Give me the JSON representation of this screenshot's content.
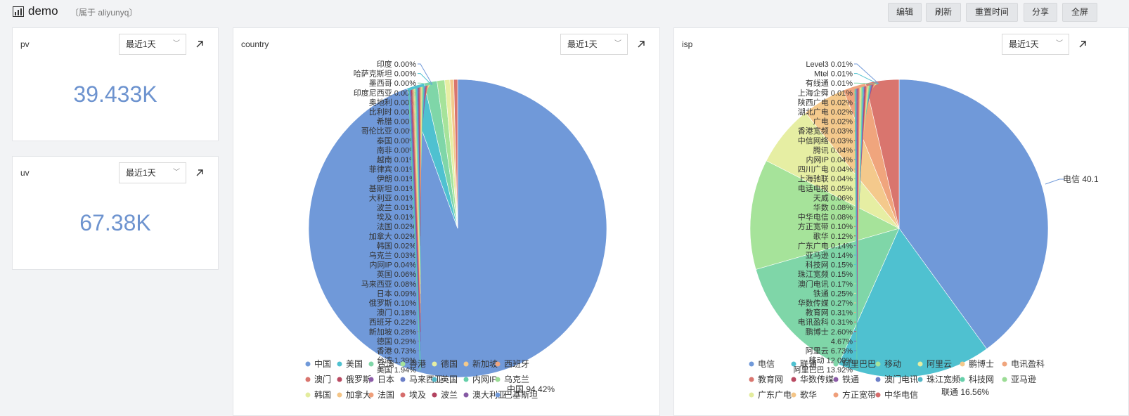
{
  "header": {
    "title": "demo",
    "owner": "〔属于 aliyunyq〕",
    "buttons": [
      "编辑",
      "刷新",
      "重置时间",
      "分享",
      "全屏"
    ]
  },
  "pv": {
    "title": "pv",
    "range": "最近1天",
    "value": "39.433K"
  },
  "uv": {
    "title": "uv",
    "range": "最近1天",
    "value": "67.38K"
  },
  "country": {
    "title": "country",
    "range": "最近1天",
    "labels": [
      "印度 0.00%",
      "哈萨克斯坦 0.00%",
      "墨西哥 0.00%",
      "印度尼西亚 0.00%",
      "奥地利 0.00%",
      "比利时 0.00%",
      "希腊 0.00%",
      "哥伦比亚 0.00%",
      "泰国 0.00%",
      "南非 0.00%",
      "越南 0.01%",
      "菲律宾 0.01%",
      "伊朗 0.01%",
      "基斯坦 0.01%",
      "大利亚 0.01%",
      "波兰 0.01%",
      "埃及 0.01%",
      "法国 0.02%",
      "加拿大 0.02%",
      "韩国 0.02%",
      "乌克兰 0.03%",
      "内网IP 0.04%",
      "英国 0.06%",
      "马来西亚 0.08%",
      "日本 0.09%",
      "俄罗斯 0.10%",
      "澳门 0.18%",
      "西班牙 0.22%",
      "新加坡 0.28%",
      "德国 0.29%",
      "香港 0.73%",
      "台湾 1.39%",
      "美国 1.94%"
    ],
    "main_label": "中国 94.42%",
    "legend": [
      "中国",
      "美国",
      "台湾",
      "香港",
      "德国",
      "新加坡",
      "西班牙",
      "澳门",
      "俄罗斯",
      "日本",
      "马来西亚",
      "英国",
      "内网IP",
      "乌克兰",
      "韩国",
      "加拿大",
      "法国",
      "埃及",
      "波兰",
      "澳大利亚",
      "巴基斯坦"
    ]
  },
  "isp": {
    "title": "isp",
    "range": "最近1天",
    "labels": [
      "Level3 0.01%",
      "Mtel 0.01%",
      "有线通 0.01%",
      "上海企舜 0.01%",
      "陕西广电 0.02%",
      "湖北广电 0.02%",
      "广电 0.02%",
      "香港宽频 0.03%",
      "中信网络 0.03%",
      "腾讯 0.04%",
      "内网IP 0.04%",
      "四川广电 0.04%",
      "上海驰联 0.04%",
      "电话电报 0.05%",
      "天威 0.06%",
      "华数 0.08%",
      "中华电信 0.08%",
      "方正宽带 0.10%",
      "歌华 0.12%",
      "广东广电 0.14%",
      "亚马逊 0.14%",
      "科技网 0.15%",
      "珠江宽频 0.15%",
      "澳门电讯 0.17%",
      "铁通 0.25%",
      "华数传媒 0.27%",
      "教育网 0.31%",
      "电讯盈科 0.31%",
      "鹏博士 2.60%",
      "4.67%",
      "阿里云 6.73%",
      "移动 12.00%",
      "阿里巴巴 13.92%"
    ],
    "main_label": "电信 40.1",
    "bottom_label": "联通 16.56%",
    "legend": [
      "电信",
      "联通",
      "阿里巴巴",
      "移动",
      "阿里云",
      "鹏博士",
      "电讯盈科",
      "教育网",
      "华数传媒",
      "铁通",
      "澳门电讯",
      "珠江宽频",
      "科技网",
      "亚马逊",
      "广东广电",
      "歌华",
      "方正宽带",
      "中华电信"
    ]
  },
  "colors": {
    "accent": "#6d93cf",
    "palette": [
      "#7099d9",
      "#4fc1d0",
      "#7fd6a8",
      "#a6e39a",
      "#e6eea3",
      "#f4c98c",
      "#f0a57d",
      "#d9756e",
      "#b94a62",
      "#8c5ca8",
      "#6c7fc8",
      "#53b7c7",
      "#66cfaa",
      "#9bdc95",
      "#e3ec9e",
      "#f4c587",
      "#ef9f7a",
      "#d66d6c",
      "#b24360",
      "#855aa3"
    ]
  }
}
